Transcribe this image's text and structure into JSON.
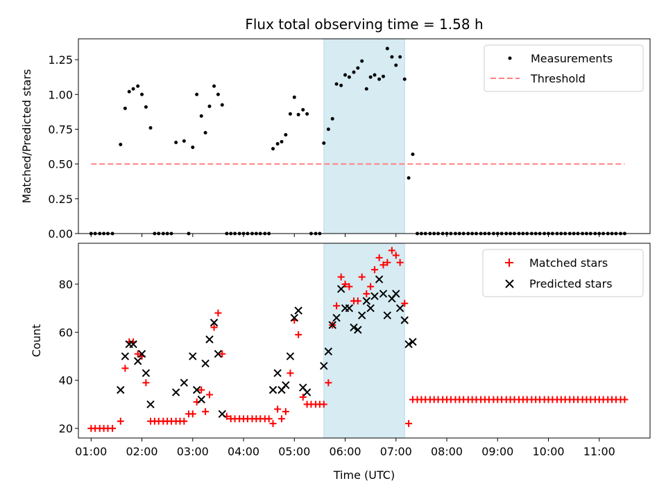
{
  "chart_data": [
    {
      "type": "scatter",
      "title": "Flux total observing time = 1.58 h",
      "xlabel": "",
      "ylabel": "Matched/Predicted stars",
      "xlim": [
        0.75,
        12.0
      ],
      "ylim": [
        0.0,
        1.4
      ],
      "yticks": [
        "0.00",
        "0.25",
        "0.50",
        "0.75",
        "1.00",
        "1.25"
      ],
      "shaded_span": [
        5.58,
        7.17
      ],
      "legend": {
        "position": "top-right",
        "entries": [
          "Measurements",
          "Threshold"
        ]
      },
      "threshold": {
        "name": "Threshold",
        "y": 0.5,
        "x": [
          1.0,
          11.5
        ],
        "color": "#ff7f7f"
      },
      "series": [
        {
          "name": "Measurements",
          "color": "#000000",
          "x": [
            1.0,
            1.08,
            1.17,
            1.25,
            1.33,
            1.42,
            1.58,
            1.67,
            1.75,
            1.83,
            1.92,
            2.0,
            2.08,
            2.17,
            2.25,
            2.33,
            2.42,
            2.5,
            2.58,
            2.67,
            2.83,
            2.92,
            3.0,
            3.08,
            3.17,
            3.25,
            3.33,
            3.42,
            3.5,
            3.58,
            3.67,
            3.75,
            3.83,
            3.92,
            4.0,
            4.08,
            4.17,
            4.25,
            4.33,
            4.42,
            4.5,
            4.58,
            4.67,
            4.75,
            4.83,
            4.92,
            5.0,
            5.08,
            5.17,
            5.25,
            5.33,
            5.42,
            5.5,
            5.58,
            5.67,
            5.75,
            5.83,
            5.92,
            6.0,
            6.08,
            6.17,
            6.25,
            6.33,
            6.42,
            6.5,
            6.58,
            6.67,
            6.75,
            6.83,
            6.92,
            7.0,
            7.08,
            7.17,
            7.25,
            7.33,
            7.42,
            7.5,
            7.58,
            7.67,
            7.75,
            7.83,
            7.92,
            8.0,
            8.08,
            8.17,
            8.25,
            8.33,
            8.42,
            8.5,
            8.58,
            8.67,
            8.75,
            8.83,
            8.92,
            9.0,
            9.08,
            9.17,
            9.25,
            9.33,
            9.42,
            9.5,
            9.58,
            9.67,
            9.75,
            9.83,
            9.92,
            10.0,
            10.08,
            10.17,
            10.25,
            10.33,
            10.42,
            10.5,
            10.58,
            10.67,
            10.75,
            10.83,
            10.92,
            11.0,
            11.08,
            11.17,
            11.25,
            11.33,
            11.42,
            11.5
          ],
          "y": [
            0,
            0,
            0,
            0,
            0,
            0,
            0.64,
            0.9,
            1.02,
            1.04,
            1.06,
            1.0,
            0.91,
            0.76,
            0,
            0,
            0,
            0,
            0,
            0.655,
            0.665,
            0,
            0.62,
            1.0,
            0.845,
            0.725,
            0.915,
            1.06,
            1.0,
            0.925,
            0,
            0,
            0,
            0,
            0,
            0,
            0,
            0,
            0,
            0,
            0,
            0.61,
            0.645,
            0.66,
            0.71,
            0.86,
            0.98,
            0.855,
            0.89,
            0.86,
            0,
            0,
            0,
            0.65,
            0.75,
            0.825,
            1.075,
            1.065,
            1.14,
            1.125,
            1.16,
            1.19,
            1.24,
            1.04,
            1.125,
            1.14,
            1.11,
            1.13,
            1.33,
            1.27,
            1.21,
            1.27,
            1.11,
            0.4,
            0.57,
            0,
            0,
            0,
            0,
            0,
            0,
            0,
            0,
            0,
            0,
            0,
            0,
            0,
            0,
            0,
            0,
            0,
            0,
            0,
            0,
            0,
            0,
            0,
            0,
            0,
            0,
            0,
            0,
            0,
            0,
            0,
            0,
            0,
            0,
            0,
            0,
            0,
            0,
            0,
            0,
            0,
            0,
            0,
            0,
            0,
            0,
            0,
            0,
            0,
            0
          ]
        }
      ]
    },
    {
      "type": "scatter",
      "title": "",
      "xlabel": "Time (UTC)",
      "ylabel": "Count",
      "xlim": [
        0.75,
        12.0
      ],
      "ylim": [
        16,
        97
      ],
      "yticks": [
        "20",
        "40",
        "60",
        "80"
      ],
      "xticks": [
        "01:00",
        "02:00",
        "03:00",
        "04:00",
        "05:00",
        "06:00",
        "07:00",
        "08:00",
        "09:00",
        "10:00",
        "11:00"
      ],
      "shaded_span": [
        5.58,
        7.17
      ],
      "legend": {
        "position": "top-right",
        "entries": [
          "Matched stars",
          "Predicted stars"
        ]
      },
      "series": [
        {
          "name": "Matched stars",
          "marker": "plus",
          "color": "#ff0000",
          "x": [
            1.0,
            1.08,
            1.17,
            1.25,
            1.33,
            1.42,
            1.58,
            1.67,
            1.75,
            1.83,
            1.92,
            2.0,
            2.08,
            2.17,
            2.25,
            2.33,
            2.42,
            2.5,
            2.58,
            2.67,
            2.75,
            2.83,
            2.92,
            3.0,
            3.08,
            3.17,
            3.25,
            3.33,
            3.42,
            3.5,
            3.58,
            3.67,
            3.75,
            3.83,
            3.92,
            4.0,
            4.08,
            4.17,
            4.25,
            4.33,
            4.42,
            4.5,
            4.58,
            4.67,
            4.75,
            4.83,
            4.92,
            5.0,
            5.08,
            5.17,
            5.25,
            5.33,
            5.42,
            5.5,
            5.58,
            5.67,
            5.75,
            5.83,
            5.92,
            6.0,
            6.08,
            6.17,
            6.25,
            6.33,
            6.42,
            6.5,
            6.58,
            6.67,
            6.75,
            6.83,
            6.92,
            7.0,
            7.08,
            7.17,
            7.25,
            7.33,
            7.42,
            7.5,
            7.58,
            7.67,
            7.75,
            7.83,
            7.92,
            8.0,
            8.08,
            8.17,
            8.25,
            8.33,
            8.42,
            8.5,
            8.58,
            8.67,
            8.75,
            8.83,
            8.92,
            9.0,
            9.08,
            9.17,
            9.25,
            9.33,
            9.42,
            9.5,
            9.58,
            9.67,
            9.75,
            9.83,
            9.92,
            10.0,
            10.08,
            10.17,
            10.25,
            10.33,
            10.42,
            10.5,
            10.58,
            10.67,
            10.75,
            10.83,
            10.92,
            11.0,
            11.08,
            11.17,
            11.25,
            11.33,
            11.42,
            11.5
          ],
          "y": [
            20,
            20,
            20,
            20,
            20,
            20,
            23,
            45,
            56,
            56,
            51,
            50,
            39,
            23,
            23,
            23,
            23,
            23,
            23,
            23,
            23,
            23,
            26,
            26,
            31,
            36,
            27,
            34,
            62,
            68,
            51,
            25,
            24,
            24,
            24,
            24,
            24,
            24,
            24,
            24,
            24,
            24,
            22,
            28,
            24,
            27,
            43,
            65,
            59,
            33,
            30,
            30,
            30,
            30,
            30,
            39,
            63,
            71,
            83,
            80,
            79,
            73,
            73,
            83,
            76,
            79,
            86,
            91,
            88,
            89,
            94,
            92,
            89,
            72,
            22,
            32,
            32,
            32,
            32,
            32,
            32,
            32,
            32,
            32,
            32,
            32,
            32,
            32,
            32,
            32,
            32,
            32,
            32,
            32,
            32,
            32,
            32,
            32,
            32,
            32,
            32,
            32,
            32,
            32,
            32,
            32,
            32,
            32,
            32,
            32,
            32,
            32,
            32,
            32,
            32,
            32,
            32,
            32,
            32,
            32,
            32,
            32,
            32,
            32,
            32,
            32
          ]
        },
        {
          "name": "Predicted stars",
          "marker": "x",
          "color": "#000000",
          "x": [
            1.58,
            1.67,
            1.75,
            1.83,
            1.92,
            2.0,
            2.08,
            2.17,
            2.67,
            2.83,
            3.0,
            3.08,
            3.17,
            3.25,
            3.33,
            3.42,
            3.5,
            3.58,
            4.58,
            4.67,
            4.75,
            4.83,
            4.92,
            5.0,
            5.08,
            5.17,
            5.25,
            5.58,
            5.67,
            5.75,
            5.83,
            5.92,
            6.0,
            6.08,
            6.17,
            6.25,
            6.33,
            6.42,
            6.5,
            6.58,
            6.67,
            6.75,
            6.83,
            6.92,
            7.0,
            7.08,
            7.17,
            7.25,
            7.33
          ],
          "y": [
            36,
            50,
            55,
            55,
            48,
            51,
            43,
            30,
            35,
            39,
            50,
            36,
            32,
            47,
            57,
            64,
            51,
            26,
            36,
            43,
            36,
            38,
            50,
            66,
            69,
            37,
            35,
            46,
            52,
            63,
            66,
            78,
            70,
            70,
            62,
            61,
            67,
            73,
            70,
            75,
            82,
            76,
            67,
            74,
            76,
            70,
            65,
            55,
            56
          ]
        }
      ]
    }
  ]
}
